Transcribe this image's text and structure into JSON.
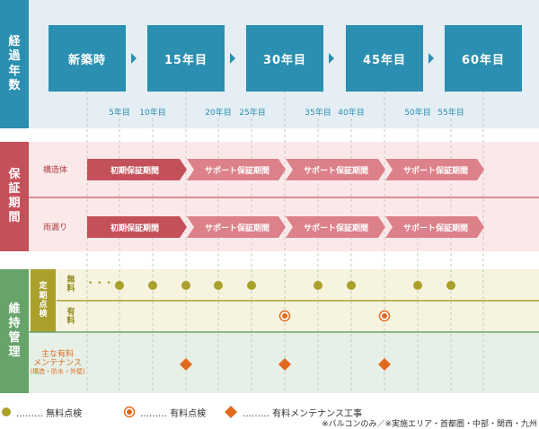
{
  "sections": {
    "elapsed": {
      "label": [
        "経",
        "過",
        "年",
        "数"
      ]
    },
    "warranty": {
      "label": [
        "保",
        "証",
        "期",
        "間"
      ]
    },
    "maintenance": {
      "label": [
        "維",
        "持",
        "管",
        "理"
      ]
    }
  },
  "milestones": [
    "新築時",
    "15年目",
    "30年目",
    "45年目",
    "60年目"
  ],
  "year_ticks": [
    "5年目",
    "10年目",
    "20年目",
    "25年目",
    "35年目",
    "40年目",
    "50年目",
    "55年目"
  ],
  "warranty_rows": [
    {
      "label": "構造体",
      "periods": [
        "初期保証期間",
        "サポート保証期間",
        "サポート保証期間",
        "サポート保証期間"
      ]
    },
    {
      "label": "雨漏り",
      "periods": [
        "初期保証期間",
        "サポート保証期間",
        "サポート保証期間",
        "サポート保証期間"
      ]
    }
  ],
  "maintenance": {
    "periodic_label": [
      "定",
      "期",
      "点",
      "検"
    ],
    "free_label": [
      "無",
      "料"
    ],
    "paid_label": [
      "有",
      "料"
    ],
    "major_label": [
      "主な有料",
      "メンテナンス"
    ],
    "major_sub": "(構造・防水・外壁)",
    "ellipsis": "• • •"
  },
  "legend": {
    "free": "……… 無料点検",
    "paid": "……… 有料点検",
    "work": "……… 有料メンテナンス工事"
  },
  "footnote": "※バルコンのみ／※実施エリア・首都圏・中部・関西・九州",
  "colors": {
    "blue": "#2a8fb0",
    "red": "#c4515a",
    "red_light": "#dc8189",
    "olive": "#aaa02c",
    "green": "#66a46a",
    "orange": "#e26a1f"
  }
}
